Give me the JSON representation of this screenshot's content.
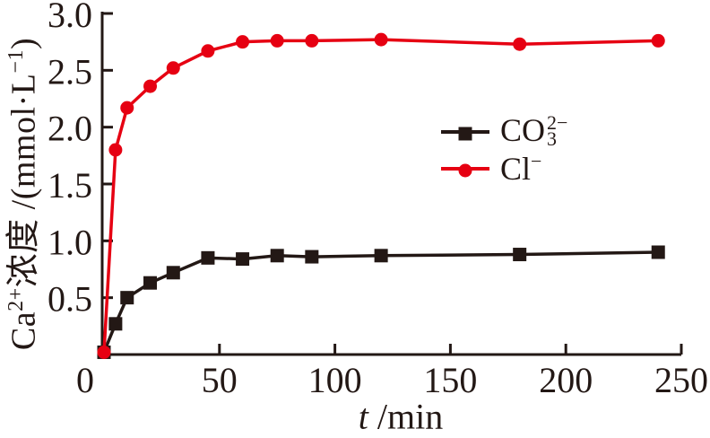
{
  "figure": {
    "background": "#ffffff",
    "text_color": "#231815",
    "axis_color": "#231815"
  },
  "chart_data": {
    "type": "line",
    "title": "",
    "xlabel": "t/min",
    "xlabel_parts": {
      "var": "t",
      "rest": " /min"
    },
    "ylabel": "Ca2+浓度/(mmol·L−1)",
    "ylabel_parts": [
      {
        "text": "Ca"
      },
      {
        "sup": "2+"
      },
      {
        "text": "浓度 /(mmol·L"
      },
      {
        "sup": "−1"
      },
      {
        "text": ")"
      }
    ],
    "xlim": [
      0,
      250
    ],
    "ylim": [
      0,
      3.0
    ],
    "grid": false,
    "legend_position": "center-right-upper",
    "x_ticks": [
      {
        "v": 0,
        "label": "0"
      },
      {
        "v": 50,
        "label": "50"
      },
      {
        "v": 100,
        "label": "100"
      },
      {
        "v": 150,
        "label": "150"
      },
      {
        "v": 200,
        "label": "200"
      },
      {
        "v": 250,
        "label": "250"
      }
    ],
    "y_ticks": [
      {
        "v": 0.5,
        "label": "0.5"
      },
      {
        "v": 1.0,
        "label": "1.0"
      },
      {
        "v": 1.5,
        "label": "1.5"
      },
      {
        "v": 2.0,
        "label": "2.0"
      },
      {
        "v": 2.5,
        "label": "2.5"
      },
      {
        "v": 3.0,
        "label": "3.0"
      }
    ],
    "series": [
      {
        "name": "CO3 2-",
        "label_main": "CO",
        "label_sup": "2−",
        "label_sub": "3",
        "color": "#231815",
        "marker": "square",
        "x": [
          0,
          5,
          10,
          20,
          30,
          45,
          60,
          75,
          90,
          120,
          180,
          240
        ],
        "values": [
          0.02,
          0.27,
          0.5,
          0.63,
          0.72,
          0.85,
          0.84,
          0.87,
          0.86,
          0.87,
          0.88,
          0.9
        ]
      },
      {
        "name": "Cl-",
        "label_main": "Cl",
        "label_sup": "−",
        "label_sub": "",
        "color": "#e60012",
        "marker": "circle",
        "x": [
          0,
          5,
          10,
          20,
          30,
          45,
          60,
          75,
          90,
          120,
          180,
          240
        ],
        "values": [
          0.02,
          1.8,
          2.17,
          2.36,
          2.52,
          2.67,
          2.75,
          2.76,
          2.76,
          2.77,
          2.73,
          2.76
        ]
      }
    ]
  }
}
